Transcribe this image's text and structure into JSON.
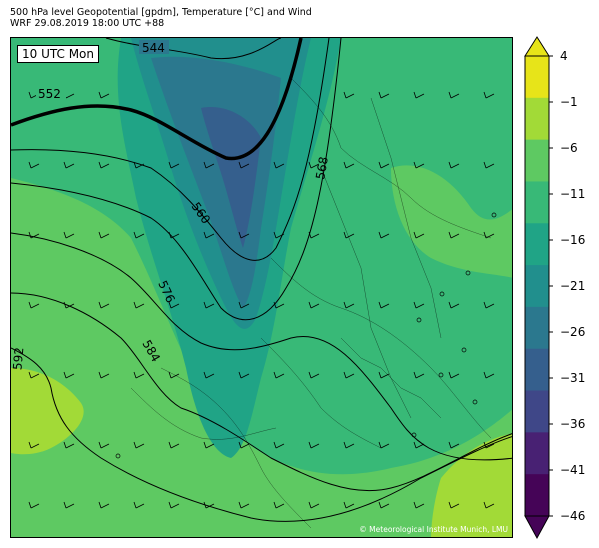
{
  "title_line1": "500 hPa level Geopotential [gpdm], Temperature [°C] and Wind",
  "title_line2": "WRF 29.08.2019 18:00 UTC +88",
  "time_label": "10 UTC Mon",
  "credit": "© Meteorological Institute Munich, LMU",
  "colorbar": {
    "ticks": [
      "4",
      "−1",
      "−6",
      "−11",
      "−16",
      "−21",
      "−26",
      "−31",
      "−36",
      "−41",
      "−46"
    ],
    "colors_top_to_bottom": [
      "#e7e419",
      "#a2da37",
      "#5ec962",
      "#38b977",
      "#20a486",
      "#218f8d",
      "#2b788e",
      "#355f8d",
      "#3f4788",
      "#482173",
      "#450457"
    ]
  },
  "contour_labels": [
    "544",
    "552",
    "560",
    "568",
    "576",
    "584",
    "592"
  ]
}
